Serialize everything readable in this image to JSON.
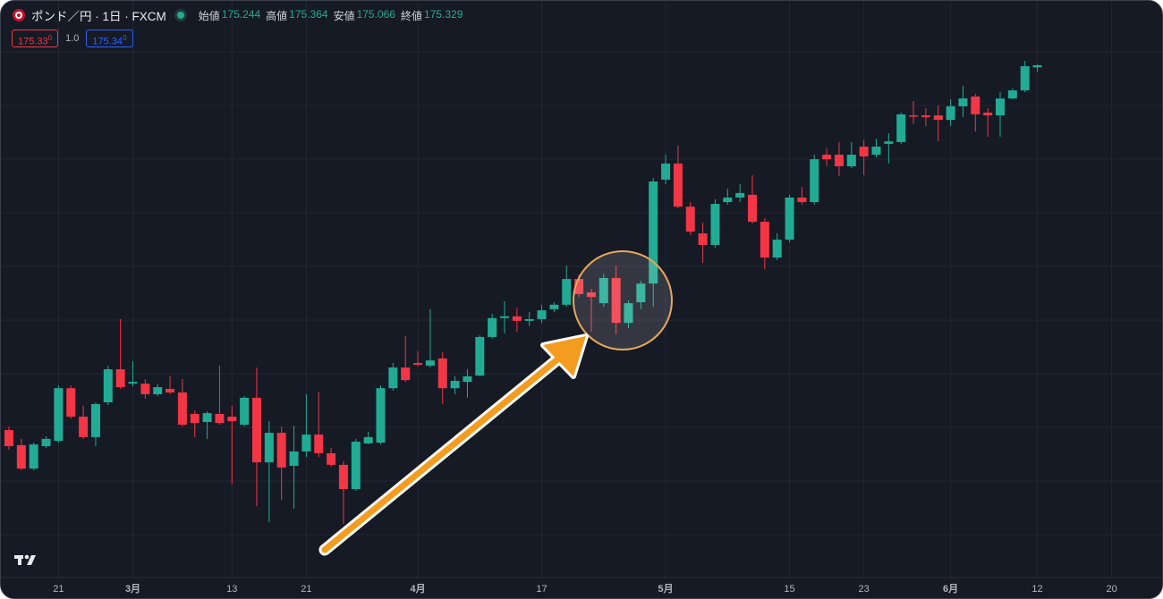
{
  "chart_data": {
    "type": "candlestick",
    "title": "ポンド／円 · 1日 · FXCM",
    "ohlc_legend": [
      {
        "label": "始値",
        "value": 175.244
      },
      {
        "label": "高値",
        "value": 175.364
      },
      {
        "label": "安値",
        "value": 175.066
      },
      {
        "label": "終値",
        "value": 175.329
      }
    ],
    "trade": {
      "sell_price": "175.33",
      "sell_pip": "0",
      "spread": "1.0",
      "buy_price": "175.34",
      "buy_pip": "0"
    },
    "up_color": "#22ab94",
    "down_color": "#f23645",
    "ylim": [
      155.01,
      177.88
    ],
    "categories": [
      null,
      null,
      null,
      null,
      "21",
      null,
      null,
      null,
      null,
      null,
      "3月",
      null,
      null,
      null,
      null,
      null,
      null,
      null,
      "13",
      null,
      null,
      null,
      null,
      null,
      "21",
      null,
      null,
      null,
      null,
      null,
      null,
      null,
      null,
      "4月",
      null,
      null,
      null,
      null,
      null,
      null,
      null,
      null,
      null,
      "17",
      null,
      null,
      null,
      null,
      null,
      null,
      null,
      null,
      null,
      "5月",
      null,
      null,
      null,
      null,
      null,
      null,
      null,
      null,
      null,
      "15",
      null,
      null,
      null,
      null,
      null,
      "23",
      null,
      null,
      null,
      null,
      null,
      null,
      "6月",
      null,
      null,
      null,
      null,
      null,
      null,
      "12",
      null,
      null,
      null,
      null,
      null,
      "20"
    ],
    "open": [
      160.86,
      160.26,
      159.33,
      160.22,
      160.43,
      162.52,
      161.39,
      160.58,
      161.96,
      163.27,
      162.7,
      162.7,
      162.28,
      162.49,
      162.35,
      161.5,
      161.18,
      161.5,
      161.39,
      161.07,
      162.14,
      159.58,
      160.75,
      159.44,
      160.01,
      160.68,
      159.94,
      159.48,
      158.52,
      160.33,
      160.36,
      162.52,
      163.34,
      163.52,
      163.41,
      163.7,
      162.52,
      162.77,
      163.02,
      164.55,
      165.3,
      165.37,
      165.19,
      165.26,
      165.65,
      165.83,
      166.85,
      166.32,
      165.89,
      166.89,
      165.11,
      165.93,
      166.67,
      170.79,
      171.43,
      169.72,
      168.66,
      168.2,
      169.9,
      170.08,
      170.19,
      169.12,
      167.7,
      168.41,
      170.08,
      169.9,
      171.78,
      171.78,
      171.32,
      172.1,
      171.78,
      172.21,
      172.28,
      173.34,
      173.34,
      173.34,
      173.16,
      173.7,
      174.09,
      173.45,
      173.34,
      174.01,
      174.33,
      175.244,
      null,
      null,
      null,
      null,
      null,
      null
    ],
    "high": [
      161.0,
      160.51,
      160.36,
      160.61,
      162.63,
      162.63,
      161.82,
      161.96,
      163.41,
      165.26,
      163.59,
      162.88,
      162.7,
      162.99,
      162.88,
      161.64,
      161.6,
      163.41,
      161.82,
      162.21,
      163.34,
      161.21,
      161.0,
      161.03,
      162.28,
      162.38,
      160.15,
      159.62,
      160.51,
      160.79,
      162.63,
      163.52,
      164.58,
      163.98,
      165.65,
      163.94,
      162.99,
      163.27,
      164.62,
      165.47,
      165.97,
      165.72,
      165.54,
      165.83,
      165.93,
      167.38,
      167.03,
      166.46,
      167.06,
      167.38,
      166.0,
      166.78,
      170.86,
      171.78,
      172.14,
      169.9,
      169.09,
      170.01,
      170.43,
      170.61,
      170.97,
      169.26,
      168.66,
      170.19,
      170.5,
      171.78,
      172.03,
      172.28,
      172.28,
      172.35,
      172.42,
      172.63,
      173.45,
      173.91,
      173.62,
      173.73,
      173.98,
      174.51,
      174.19,
      173.62,
      174.26,
      174.41,
      175.5,
      175.364,
      null,
      null,
      null,
      null,
      null,
      null
    ],
    "low": [
      160.08,
      159.26,
      159.26,
      160.15,
      160.36,
      161.32,
      160.51,
      160.22,
      161.85,
      162.49,
      162.6,
      162.1,
      162.21,
      162.28,
      161.0,
      160.58,
      160.51,
      161.07,
      158.73,
      161.0,
      157.84,
      157.21,
      158.09,
      157.74,
      159.79,
      159.79,
      159.4,
      157.14,
      158.45,
      160.29,
      160.29,
      162.42,
      162.77,
      163.38,
      163.34,
      161.89,
      162.28,
      162.14,
      162.99,
      164.48,
      164.69,
      164.76,
      164.98,
      165.11,
      165.54,
      165.75,
      166.14,
      164.76,
      165.75,
      164.65,
      164.9,
      165.65,
      165.75,
      170.61,
      169.65,
      168.59,
      167.49,
      168.09,
      169.8,
      169.9,
      169.05,
      167.24,
      167.6,
      168.31,
      169.8,
      169.8,
      171.32,
      170.93,
      171.25,
      170.97,
      171.67,
      171.43,
      172.21,
      172.99,
      172.92,
      172.31,
      172.92,
      173.27,
      172.7,
      172.49,
      172.49,
      173.98,
      174.26,
      175.066,
      null,
      null,
      null,
      null,
      null,
      null
    ],
    "close": [
      160.22,
      159.33,
      160.29,
      160.51,
      162.52,
      161.39,
      160.58,
      161.89,
      163.27,
      162.56,
      162.77,
      162.28,
      162.56,
      162.35,
      161.07,
      161.14,
      161.53,
      161.14,
      161.21,
      162.14,
      159.58,
      160.75,
      159.37,
      160.01,
      160.68,
      159.94,
      159.48,
      158.52,
      160.4,
      160.58,
      162.52,
      163.34,
      162.84,
      163.45,
      163.62,
      162.52,
      162.81,
      162.99,
      164.55,
      165.3,
      165.37,
      165.19,
      165.26,
      165.61,
      165.83,
      166.85,
      166.25,
      166.14,
      166.89,
      165.11,
      165.89,
      166.67,
      170.72,
      171.43,
      169.72,
      168.73,
      168.2,
      169.83,
      170.08,
      170.26,
      169.12,
      167.7,
      168.41,
      170.08,
      169.9,
      171.6,
      171.6,
      171.32,
      171.78,
      171.71,
      172.1,
      172.31,
      173.38,
      173.31,
      173.27,
      173.16,
      173.7,
      174.01,
      173.38,
      173.34,
      174.01,
      174.33,
      175.29,
      175.329,
      null,
      null,
      null,
      null,
      null,
      null
    ]
  }
}
